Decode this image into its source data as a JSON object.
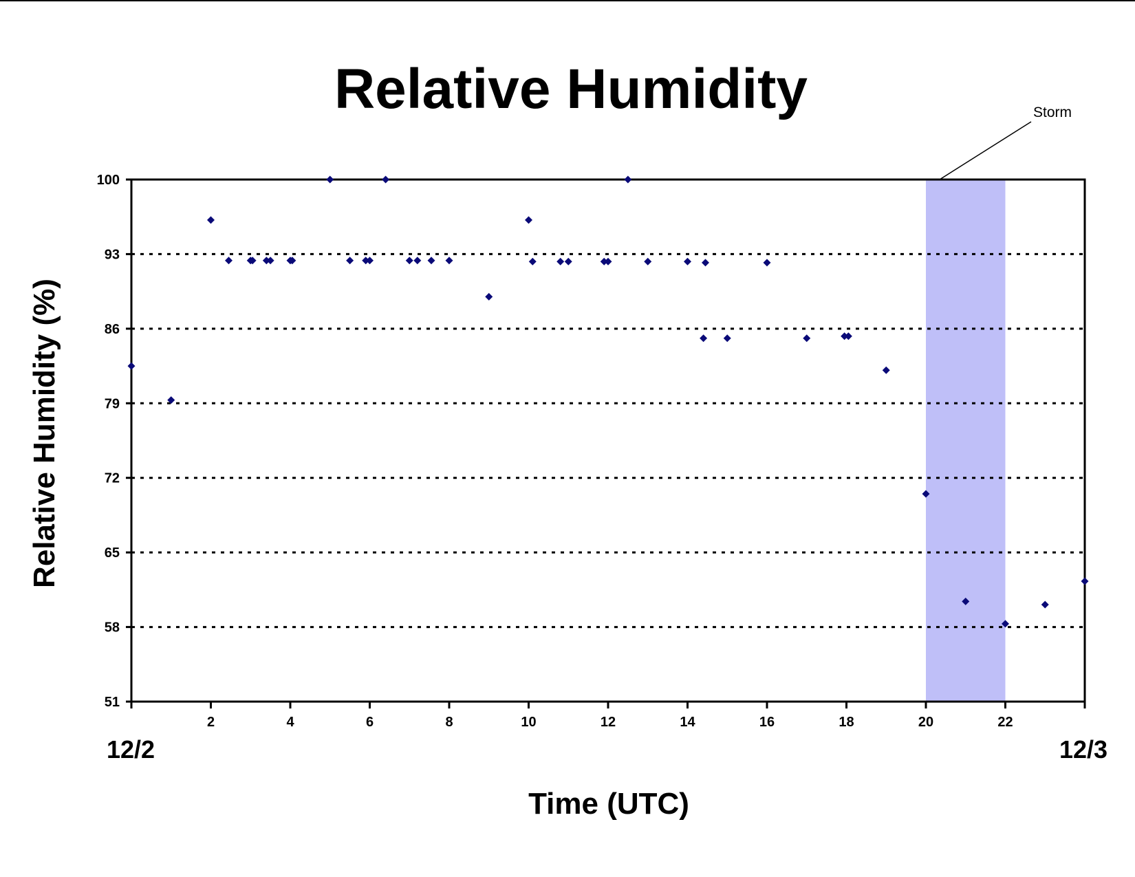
{
  "chart_data": {
    "type": "scatter",
    "title": "Relative Humidity",
    "xlabel": "Time (UTC)",
    "ylabel": "Relative Humidity (%)",
    "xlim": [
      0,
      24
    ],
    "ylim": [
      51,
      100
    ],
    "x_ticks": [
      2,
      4,
      6,
      8,
      10,
      12,
      14,
      16,
      18,
      20,
      22
    ],
    "y_ticks": [
      100,
      93,
      86,
      79,
      72,
      65,
      58,
      51
    ],
    "gridlines": [
      93,
      86,
      79,
      72,
      65,
      58
    ],
    "grid": "horizontal dashed",
    "date_labels": {
      "start": "12/2",
      "end": "12/3"
    },
    "shaded_region": {
      "x_start": 20,
      "x_end": 22,
      "color": "#bfbff8",
      "label": "Storm"
    },
    "marker_color": "#0a0a78",
    "series": [
      {
        "x": [
          0,
          1,
          2,
          2.45,
          3,
          3.05,
          3.4,
          3.5,
          4,
          4.05,
          5,
          5.5,
          5.9,
          6,
          6.4,
          7,
          7.2,
          7.55,
          8,
          9,
          10,
          10.1,
          10.8,
          11,
          11.9,
          12,
          12.5,
          13,
          14,
          14.4,
          14.45,
          15,
          16,
          17,
          17.95,
          18.05,
          19,
          20,
          21,
          22,
          23,
          24
        ],
        "y": [
          82.5,
          79.3,
          96.2,
          92.4,
          92.4,
          92.4,
          92.4,
          92.4,
          92.4,
          92.4,
          100,
          92.4,
          92.4,
          92.4,
          100,
          92.4,
          92.4,
          92.4,
          92.4,
          89,
          96.2,
          92.3,
          92.3,
          92.3,
          92.3,
          92.3,
          100,
          92.3,
          92.3,
          85.1,
          92.2,
          85.1,
          92.2,
          85.1,
          85.3,
          85.3,
          82.1,
          70.5,
          60.4,
          58.3,
          60.1,
          62.3
        ]
      }
    ]
  }
}
